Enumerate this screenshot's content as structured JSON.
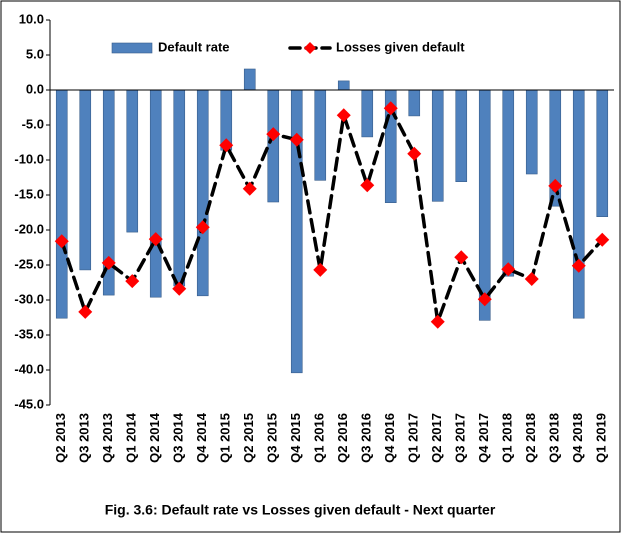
{
  "chart_data": {
    "type": "bar_line",
    "title": "Fig. 3.6: Default rate vs Losses given default - Next quarter",
    "categories": [
      "Q2 2013",
      "Q3 2013",
      "Q4 2013",
      "Q1 2014",
      "Q2 2014",
      "Q3 2014",
      "Q4 2014",
      "Q1 2015",
      "Q2 2015",
      "Q3 2015",
      "Q4 2015",
      "Q1 2016",
      "Q2 2016",
      "Q3 2016",
      "Q4 2016",
      "Q1 2017",
      "Q2 2017",
      "Q3 2017",
      "Q4 2017",
      "Q1 2018",
      "Q2 2018",
      "Q3 2018",
      "Q4 2018",
      "Q1 2019"
    ],
    "series": [
      {
        "name": "Default rate",
        "type": "bar",
        "color": "#4f81bd",
        "values": [
          -32.6,
          -25.7,
          -29.3,
          -20.3,
          -29.6,
          -28.0,
          -29.4,
          -8.6,
          3.0,
          -16.0,
          -40.4,
          -12.9,
          1.3,
          -6.7,
          -16.1,
          -3.7,
          -15.9,
          -13.1,
          -32.9,
          -26.6,
          -12.0,
          -16.6,
          -32.6,
          -18.1
        ]
      },
      {
        "name": "Losses given default",
        "type": "line",
        "color": "#000000",
        "marker_color": "#ff0000",
        "values": [
          -21.6,
          -31.7,
          -24.7,
          -27.3,
          -21.3,
          -28.4,
          -19.6,
          -7.9,
          -14.1,
          -6.3,
          -7.1,
          -25.7,
          -3.6,
          -13.6,
          -2.6,
          -9.1,
          -33.1,
          -23.9,
          -29.9,
          -25.6,
          -27.0,
          -13.7,
          -25.1,
          -21.4
        ]
      }
    ],
    "ylim": [
      -45,
      10
    ],
    "yticks": [
      {
        "value": 10,
        "label": "10.0"
      },
      {
        "value": 5,
        "label": "5.0"
      },
      {
        "value": 0,
        "label": "0.0"
      },
      {
        "value": -5,
        "label": "-5.0"
      },
      {
        "value": -10,
        "label": "-10.0"
      },
      {
        "value": -15,
        "label": "-15.0"
      },
      {
        "value": -20,
        "label": "-20.0"
      },
      {
        "value": -25,
        "label": "-25.0"
      },
      {
        "value": -30,
        "label": "-30.0"
      },
      {
        "value": -35,
        "label": "-35.0"
      },
      {
        "value": -40,
        "label": "-40.0"
      },
      {
        "value": -45,
        "label": "-45.0"
      }
    ],
    "grid": false,
    "legend": "top"
  }
}
